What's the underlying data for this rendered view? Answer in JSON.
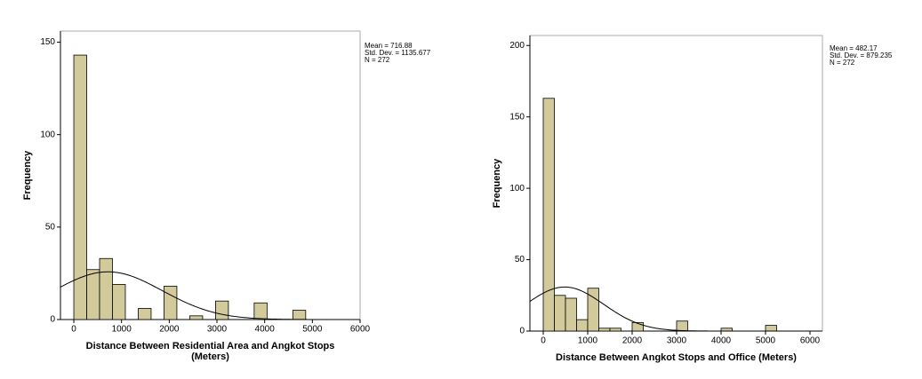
{
  "chart_data": [
    {
      "type": "histogram",
      "x_label": [
        "Distance Between Residential Area and Angkot Stops",
        "(Meters)"
      ],
      "y_label": "Frequency",
      "bins": [
        0,
        270,
        540,
        810,
        1080,
        1350,
        1620,
        1890,
        2160,
        2430,
        2700,
        2970,
        3240,
        3510,
        3780,
        4050,
        4320,
        4590,
        4860
      ],
      "values": [
        143,
        27,
        33,
        19,
        0,
        6,
        0,
        18,
        0,
        2,
        0,
        10,
        0,
        0,
        9,
        0,
        0,
        5
      ],
      "color": "#d3ca9c",
      "xlim": [
        -280,
        6000
      ],
      "xticks": [
        0,
        1000,
        2000,
        3000,
        4000,
        5000,
        6000
      ],
      "ylim": [
        0,
        156
      ],
      "yticks": [
        0,
        50,
        100,
        150
      ],
      "annotations": [
        "Mean = 716.88",
        "Std. Dev. = 1135.677",
        "N = 272"
      ],
      "normal_curve": {
        "mean": 716.88,
        "sd": 1135.677,
        "n": 272
      }
    },
    {
      "type": "histogram",
      "x_label": [
        "Distance Between Angkot Stops and Office (Meters)"
      ],
      "y_label": "Frequency",
      "bins": [
        0,
        250,
        500,
        750,
        1000,
        1250,
        1500,
        1750,
        2000,
        2250,
        2500,
        2750,
        3000,
        3250,
        3500,
        3750,
        4000,
        4250,
        4500,
        4750,
        5000,
        5250
      ],
      "values": [
        163,
        25,
        23,
        8,
        30,
        2,
        2,
        0,
        6,
        0,
        0,
        0,
        7,
        0,
        0,
        0,
        2,
        0,
        0,
        0,
        4
      ],
      "color": "#d3ca9c",
      "xlim": [
        -300,
        6280
      ],
      "xticks": [
        0,
        1000,
        2000,
        3000,
        4000,
        5000,
        6000
      ],
      "ylim": [
        0,
        207
      ],
      "yticks": [
        0,
        50,
        100,
        150,
        200
      ],
      "annotations": [
        "Mean = 482.17",
        "Std. Dev. = 879.235",
        "N = 272"
      ],
      "normal_curve": {
        "mean": 482.17,
        "sd": 879.235,
        "n": 272
      }
    }
  ]
}
